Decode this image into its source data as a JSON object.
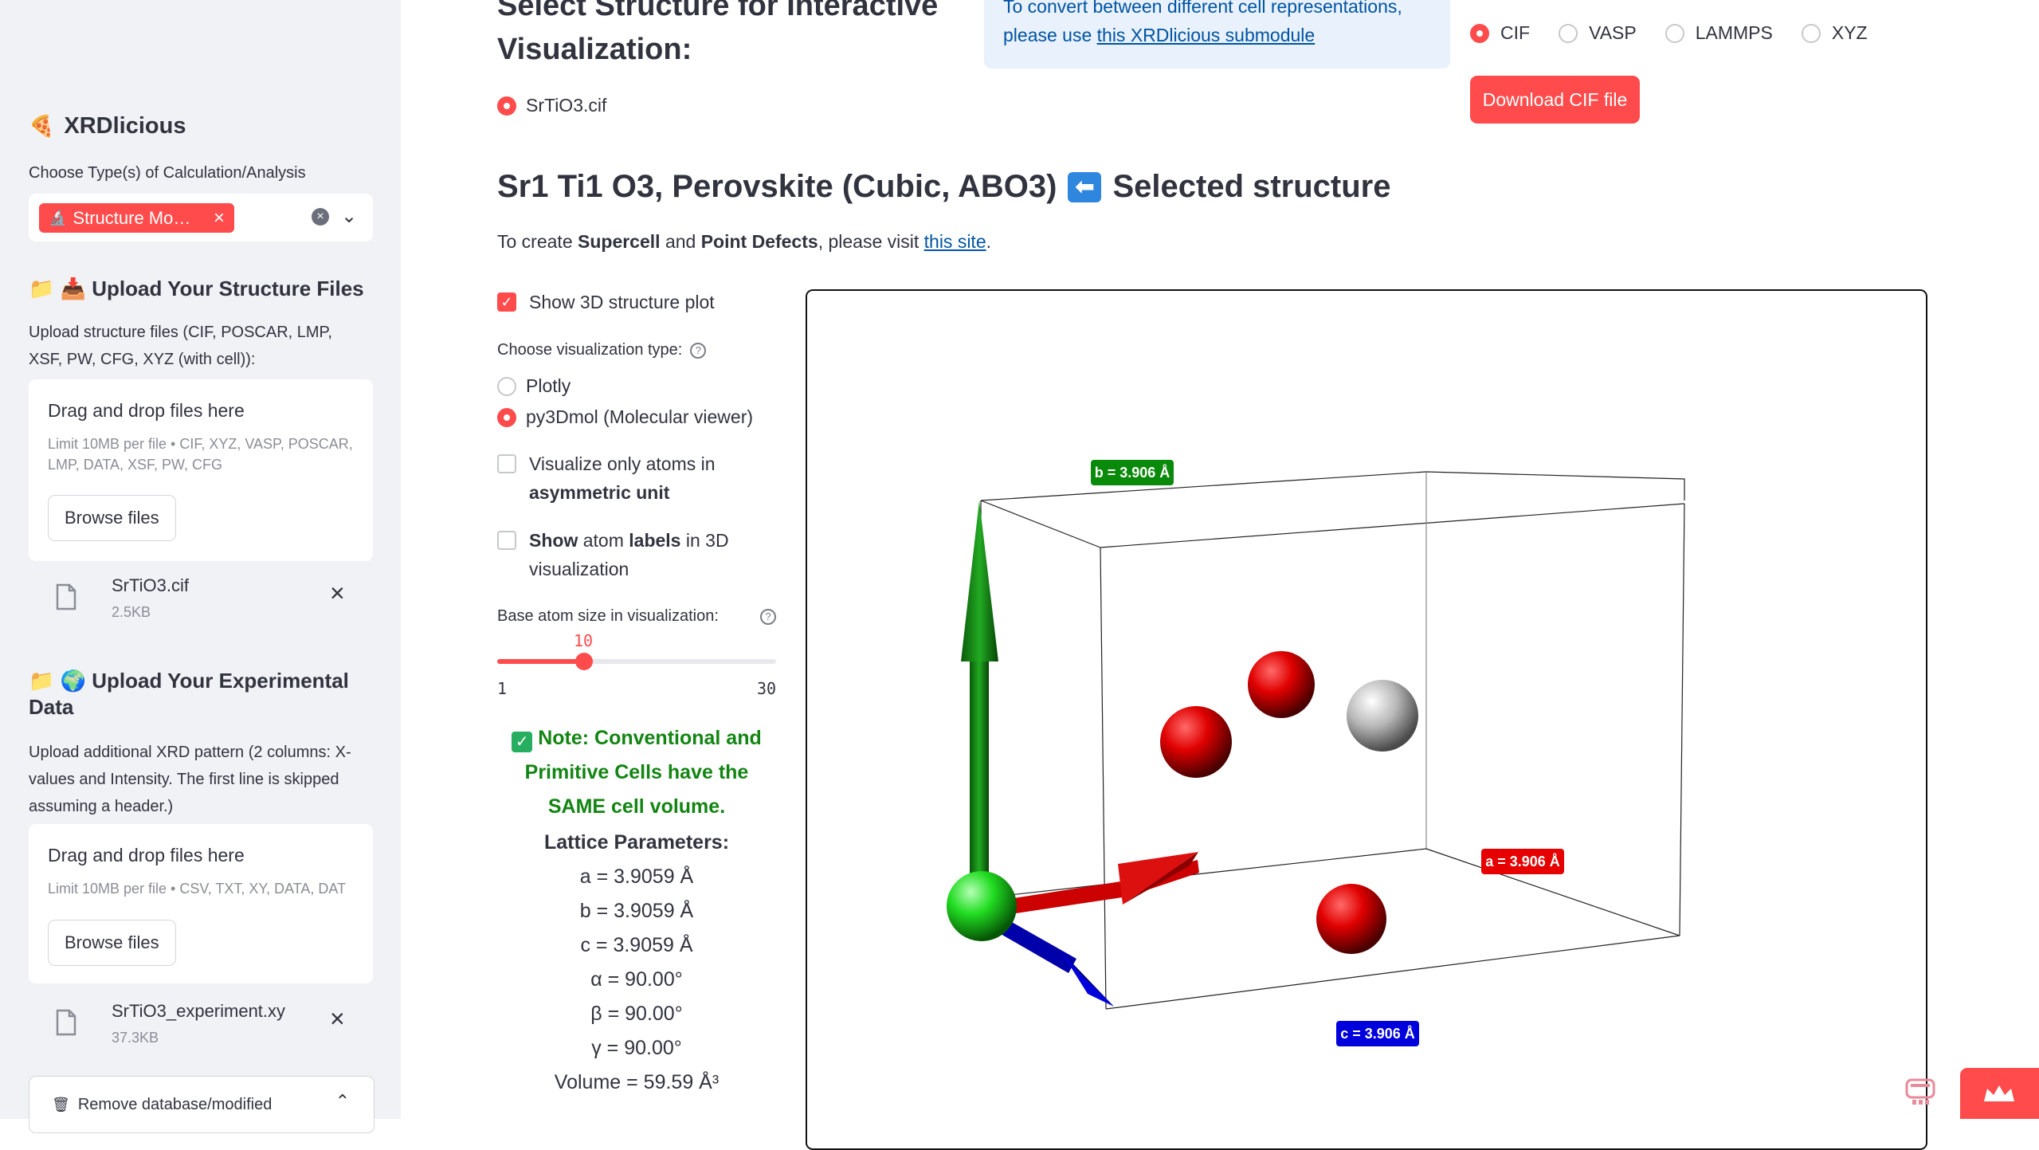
{
  "sidebar": {
    "app_title": "XRDlicious",
    "calc_type_label": "Choose Type(s) of Calculation/Analysis",
    "calc_type_selected": "Structure Mo…",
    "upload_structure_heading": "Upload Your Structure Files",
    "upload_structure_desc": "Upload structure files (CIF, POSCAR, LMP, XSF, PW, CFG, XYZ (with cell)):",
    "structure_uploader": {
      "drag_text": "Drag and drop files here",
      "limit_text": "Limit 10MB per file • CIF, XYZ, VASP, POSCAR, LMP, DATA, XSF, PW, CFG",
      "browse_label": "Browse files"
    },
    "structure_file": {
      "name": "SrTiO3.cif",
      "size": "2.5KB"
    },
    "upload_exp_heading": "Upload Your Experimental Data",
    "upload_exp_desc": "Upload additional XRD pattern (2 columns: X-values and Intensity. The first line is skipped assuming a header.)",
    "exp_uploader": {
      "drag_text": "Drag and drop files here",
      "limit_text": "Limit 10MB per file • CSV, TXT, XY, DATA, DAT",
      "browse_label": "Browse files"
    },
    "exp_file": {
      "name": "SrTiO3_experiment.xy",
      "size": "37.3KB"
    },
    "remove_expander_label": "Remove database/modified"
  },
  "main": {
    "select_heading": "Select Structure for Interactive Visualization:",
    "structure_option": "SrTiO3.cif",
    "info_text": "To convert between different cell representations, please use",
    "info_link": "this XRDlicious submodule",
    "formats": [
      "CIF",
      "VASP",
      "LAMMPS",
      "XYZ"
    ],
    "format_selected": "CIF",
    "download_label": "Download CIF file",
    "structure_title": "Sr1 Ti1 O3, Perovskite (Cubic, ABO3)",
    "structure_title_suffix": "Selected structure",
    "supercell_prefix": "To create",
    "supercell_b1": "Supercell",
    "supercell_and": "and",
    "supercell_b2": "Point Defects",
    "supercell_mid": ", please visit",
    "supercell_link": "this site",
    "supercell_end": ".",
    "show_3d_label": "Show 3D structure plot",
    "vis_type_label": "Choose visualization type:",
    "vis_options": [
      "Plotly",
      "py3Dmol (Molecular viewer)"
    ],
    "vis_selected": "py3Dmol (Molecular viewer)",
    "asym_label_pre": "Visualize only atoms in",
    "asym_label_bold": "asymmetric unit",
    "labels_b1": "Show",
    "labels_mid": "atom",
    "labels_b2": "labels",
    "labels_end": "in 3D visualization",
    "atom_size_label": "Base atom size in visualization:",
    "atom_size_value": "10",
    "atom_size_min": "1",
    "atom_size_max": "30",
    "note_text": "Note: Conventional and Primitive Cells have the SAME cell volume.",
    "lattice_title": "Lattice Parameters:",
    "lattice": [
      "a = 3.9059 Å",
      "b = 3.9059 Å",
      "c = 3.9059 Å",
      "α = 90.00°",
      "β = 90.00°",
      "γ = 90.00°",
      "Volume = 59.59 Å³"
    ]
  },
  "viewer": {
    "axis_a_label": "a = 3.906 Å",
    "axis_b_label": "b = 3.906 Å",
    "axis_c_label": "c = 3.906 Å",
    "colors": {
      "a": "#e60000",
      "b": "#0a8a0a",
      "c": "#0000dd",
      "sr_atom": "#22dd22",
      "o_atom": "#e00000",
      "ti_atom": "#b8b8b8"
    }
  },
  "theme": {
    "accent": "#ff4b4b",
    "sidebar_bg": "#f0f2f6",
    "info_bg": "#e8f1fc",
    "success": "#128512",
    "link": "#0054a3"
  }
}
